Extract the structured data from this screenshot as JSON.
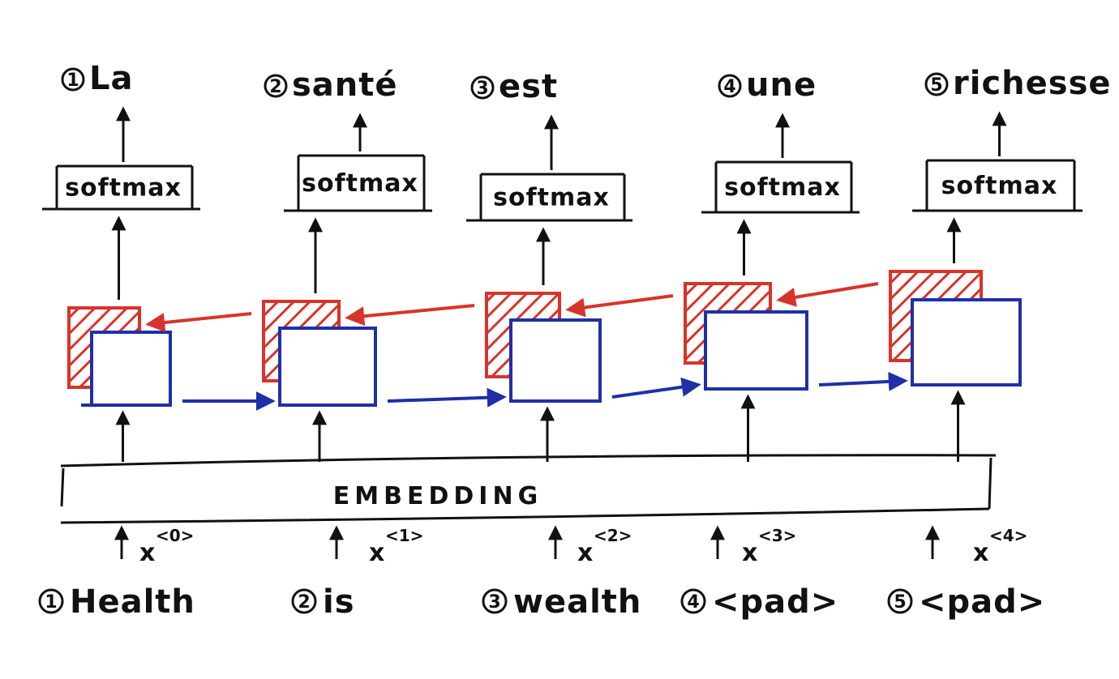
{
  "colors": {
    "ink": "#111111",
    "forward": "#1f2fa8",
    "backward": "#d8332a",
    "paper": "#ffffff"
  },
  "embedding_label": "EMBEDDING",
  "softmax_label": "softmax",
  "timesteps": [
    {
      "output_num": "1",
      "output_word": "La",
      "input_num": "1",
      "input_word": "Health",
      "x_base": "x",
      "x_sup": "<0>"
    },
    {
      "output_num": "2",
      "output_word": "santé",
      "input_num": "2",
      "input_word": "is",
      "x_base": "x",
      "x_sup": "<1>"
    },
    {
      "output_num": "3",
      "output_word": "est",
      "input_num": "3",
      "input_word": "wealth",
      "x_base": "x",
      "x_sup": "<2>"
    },
    {
      "output_num": "4",
      "output_word": "une",
      "input_num": "4",
      "input_word": "<pad>",
      "x_base": "x",
      "x_sup": "<3>"
    },
    {
      "output_num": "5",
      "output_word": "richesse",
      "input_num": "5",
      "input_word": "<pad>",
      "x_base": "x",
      "x_sup": "<4>"
    }
  ]
}
